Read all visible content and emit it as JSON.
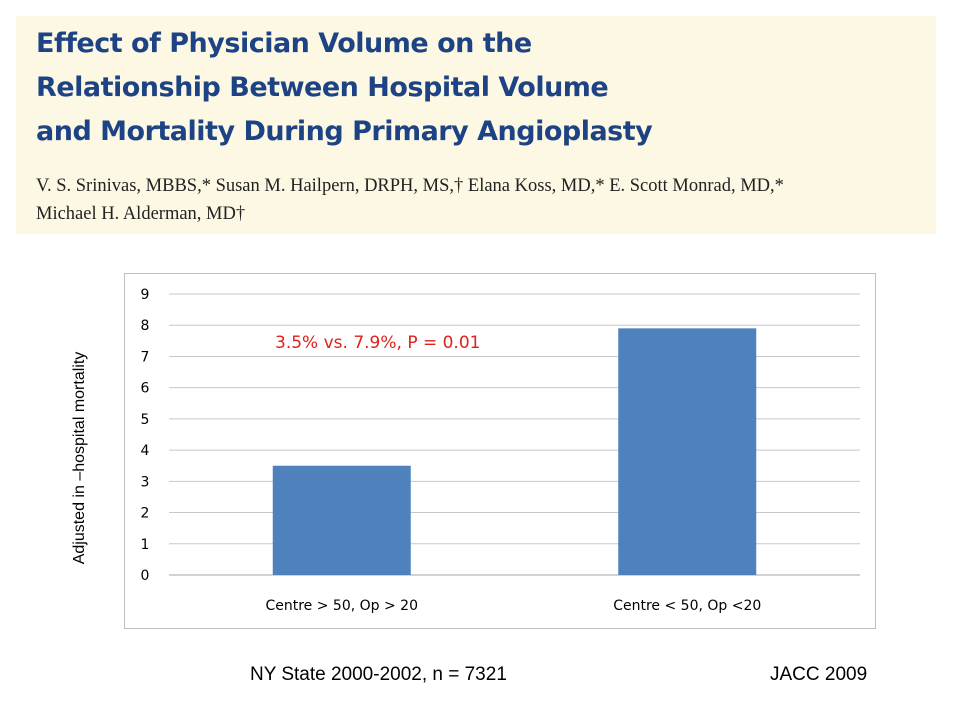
{
  "header": {
    "title_lines": [
      "Effect of Physician Volume on the",
      "Relationship Between Hospital Volume",
      "and Mortality During Primary Angioplasty"
    ],
    "authors_lines": [
      "V. S. Srinivas, MBBS,* Susan M. Hailpern, DRPH, MS,† Elana Koss, MD,* E. Scott Monrad, MD,*",
      "Michael H. Alderman, MD†"
    ]
  },
  "chart_data": {
    "type": "bar",
    "categories": [
      "Centre > 50, Op > 20",
      "Centre < 50, Op <20"
    ],
    "values": [
      3.5,
      7.9
    ],
    "ylabel": "Adjusted in –hospital mortality",
    "ylim": [
      0,
      9
    ],
    "yticks": [
      0,
      1,
      2,
      3,
      4,
      5,
      6,
      7,
      8,
      9
    ],
    "grid": true,
    "annotation": "3.5% vs. 7.9%, P = 0.01",
    "bar_color": "#4f81bd",
    "annotation_color": "#e0201b"
  },
  "footer": {
    "left": "NY State 2000-2002, n = 7321",
    "right": "JACC 2009"
  }
}
